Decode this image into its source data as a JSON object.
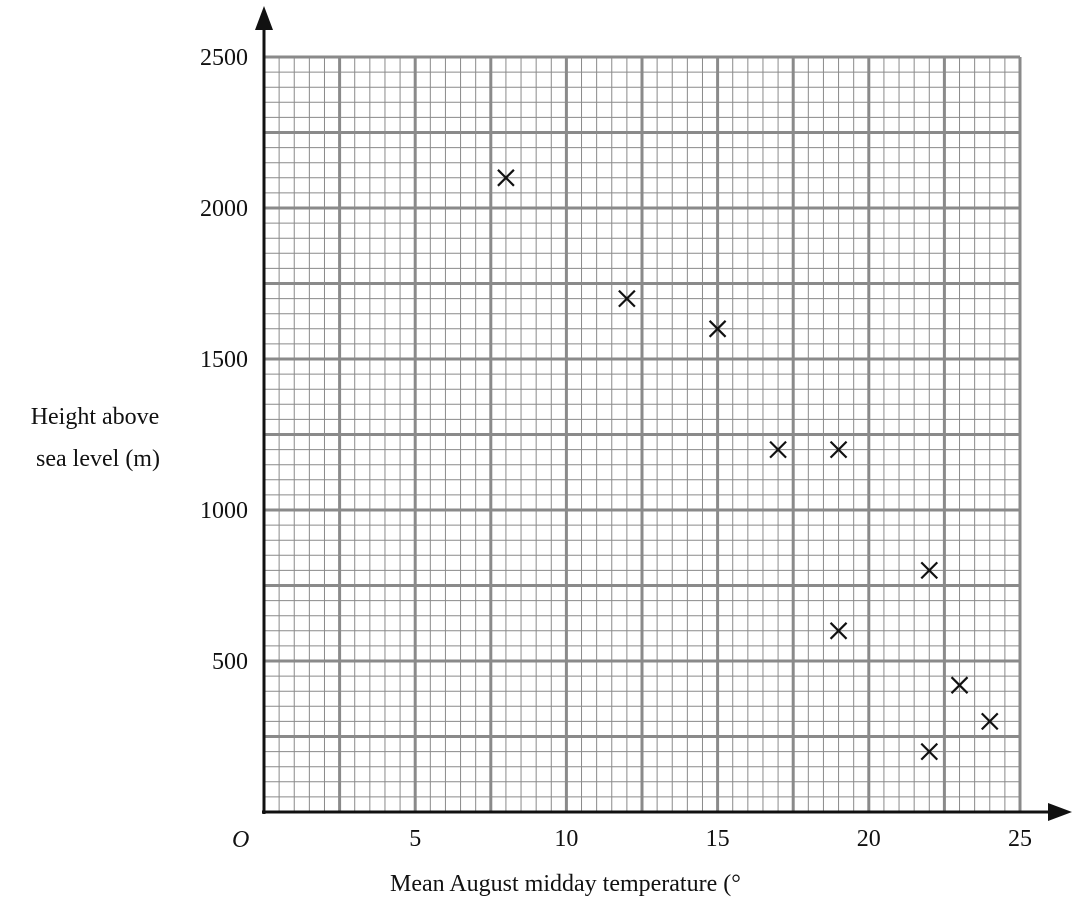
{
  "chart_data": {
    "type": "scatter",
    "title": "",
    "xlabel": "Mean August midday temperature (°",
    "ylabel_lines": [
      "Height above",
      "sea level (m)"
    ],
    "origin_label": "O",
    "xlim": [
      0,
      25
    ],
    "ylim": [
      0,
      2500
    ],
    "x_ticks": [
      5,
      10,
      15,
      20,
      25
    ],
    "y_ticks": [
      500,
      1000,
      1500,
      2000,
      2500
    ],
    "x_minor_step": 0.5,
    "y_minor_step": 50,
    "x_major_step": 2.5,
    "y_major_step": 250,
    "grid": true,
    "marker": "cross",
    "points": [
      {
        "x": 8,
        "y": 2100
      },
      {
        "x": 12,
        "y": 1700
      },
      {
        "x": 15,
        "y": 1600
      },
      {
        "x": 17,
        "y": 1200
      },
      {
        "x": 19,
        "y": 1200
      },
      {
        "x": 22,
        "y": 800
      },
      {
        "x": 19,
        "y": 600
      },
      {
        "x": 23,
        "y": 420
      },
      {
        "x": 24,
        "y": 300
      },
      {
        "x": 22,
        "y": 200
      }
    ],
    "colors": {
      "grid_minor": "#8a8a8a",
      "grid_major": "#8a8a8a",
      "axis": "#111111",
      "marker": "#111111"
    }
  }
}
